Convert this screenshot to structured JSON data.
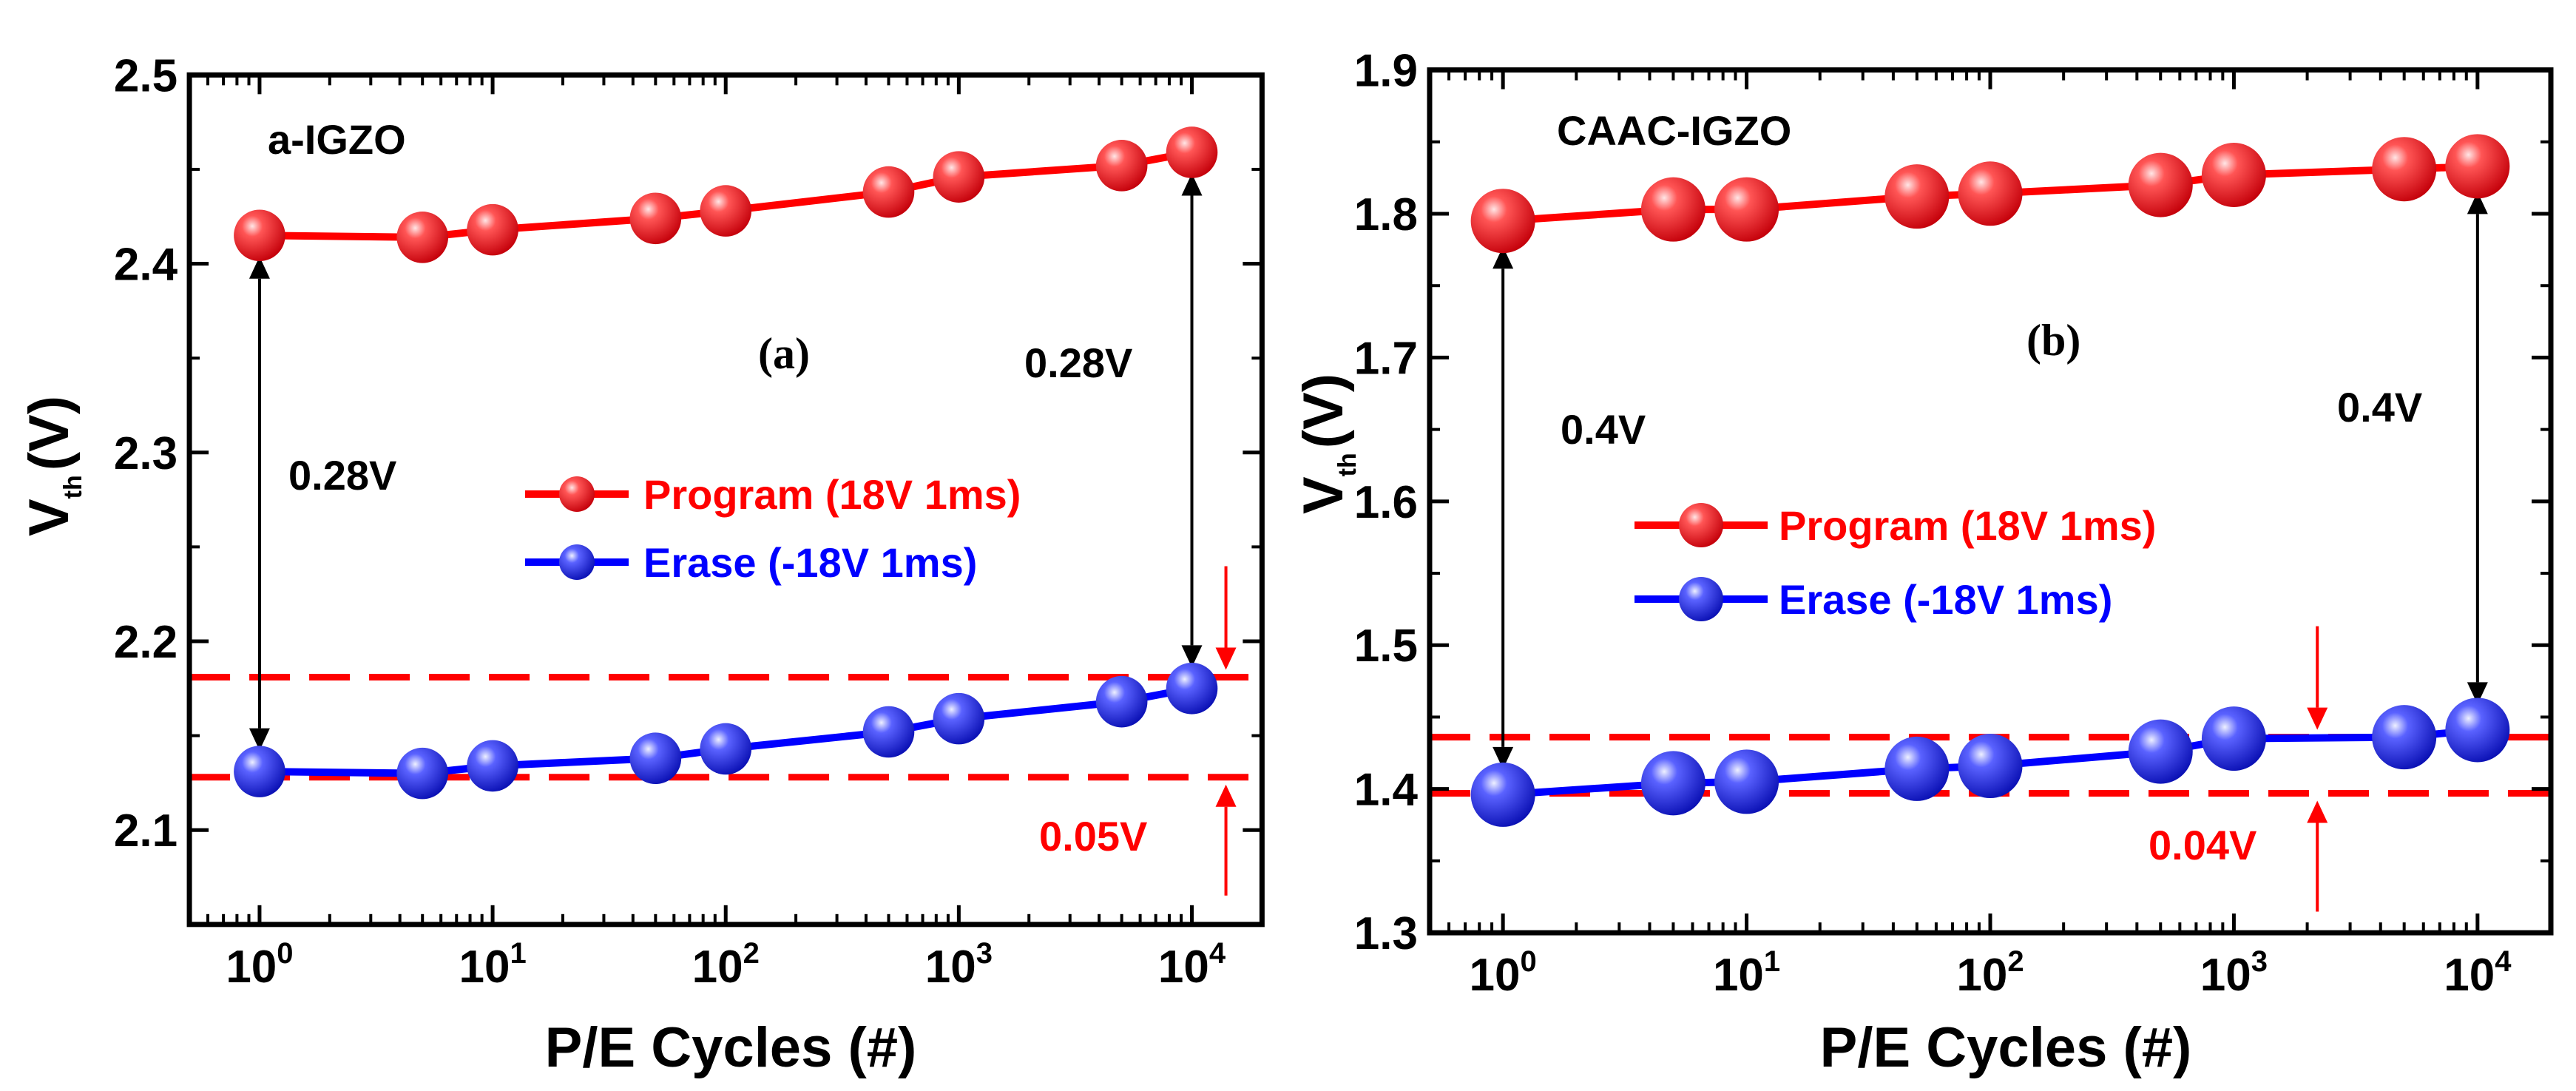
{
  "colors": {
    "program": "#ff0000",
    "erase": "#0000ff",
    "guide": "#ff0000",
    "axis": "#000000",
    "program_marker": "#e8121b",
    "erase_marker": "#1a24e0"
  },
  "chart_data": [
    {
      "type": "line",
      "panel": "(a)",
      "material": "a-IGZO",
      "xlabel": "P/E Cycles (#)",
      "ylabel": "V",
      "ylabel_sub": "th",
      "ylabel_unit": "(V)",
      "xscale": "log",
      "xlim": [
        0.5,
        20000
      ],
      "ylim": [
        2.05,
        2.5
      ],
      "x_ticks": [
        {
          "base": "10",
          "exp": "0"
        },
        {
          "base": "10",
          "exp": "1"
        },
        {
          "base": "10",
          "exp": "2"
        },
        {
          "base": "10",
          "exp": "3"
        },
        {
          "base": "10",
          "exp": "4"
        }
      ],
      "y_ticks": [
        "2.1",
        "2.2",
        "2.3",
        "2.4",
        "2.5"
      ],
      "x": [
        1,
        5,
        10,
        50,
        100,
        500,
        1000,
        5000,
        10000
      ],
      "series": [
        {
          "name": "Program (18V 1ms)",
          "values": [
            2.415,
            2.414,
            2.418,
            2.424,
            2.428,
            2.438,
            2.446,
            2.452,
            2.459
          ]
        },
        {
          "name": "Erase (-18V 1ms)",
          "values": [
            2.131,
            2.13,
            2.134,
            2.138,
            2.143,
            2.152,
            2.159,
            2.168,
            2.175
          ]
        }
      ],
      "guides": [
        2.181,
        2.128
      ],
      "window_labels": [
        "0.28V",
        "0.28V"
      ],
      "diff_label": "0.05V",
      "legend_placement": "center-right"
    },
    {
      "type": "line",
      "panel": "(b)",
      "material": "CAAC-IGZO",
      "xlabel": "P/E Cycles (#)",
      "ylabel": "V",
      "ylabel_sub": "th",
      "ylabel_unit": "(V)",
      "xscale": "log",
      "xlim": [
        0.5,
        20000
      ],
      "ylim": [
        1.3,
        1.9
      ],
      "x_ticks": [
        {
          "base": "10",
          "exp": "0"
        },
        {
          "base": "10",
          "exp": "1"
        },
        {
          "base": "10",
          "exp": "2"
        },
        {
          "base": "10",
          "exp": "3"
        },
        {
          "base": "10",
          "exp": "4"
        }
      ],
      "y_ticks": [
        "1.3",
        "1.4",
        "1.5",
        "1.6",
        "1.7",
        "1.8",
        "1.9"
      ],
      "x": [
        1,
        5,
        10,
        50,
        100,
        500,
        1000,
        5000,
        10000
      ],
      "series": [
        {
          "name": "Program (18V 1ms)",
          "values": [
            1.795,
            1.803,
            1.803,
            1.812,
            1.814,
            1.82,
            1.827,
            1.831,
            1.833
          ]
        },
        {
          "name": "Erase (-18V 1ms)",
          "values": [
            1.396,
            1.404,
            1.405,
            1.414,
            1.416,
            1.426,
            1.435,
            1.436,
            1.441
          ]
        }
      ],
      "guides": [
        1.436,
        1.397
      ],
      "window_labels": [
        "0.4V",
        "0.4V"
      ],
      "diff_label": "0.04V",
      "legend_placement": "center-right"
    }
  ]
}
